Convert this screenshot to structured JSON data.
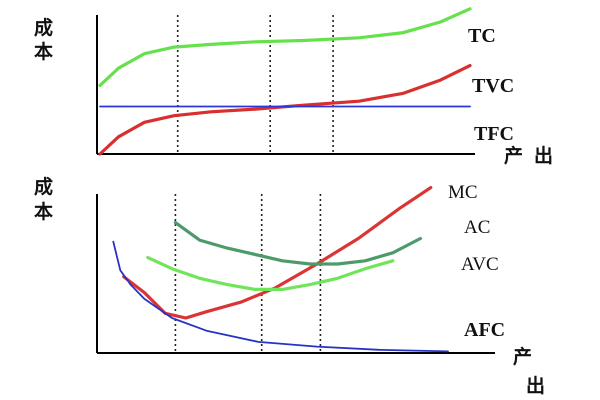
{
  "colors": {
    "background": "#ffffff",
    "tc_green": "#65e24b",
    "tvc_red": "#d92f2f",
    "tfc_blue": "#2b35d8",
    "ac_darkgreen": "#4d9a6a",
    "avc_green": "#70e55b",
    "mc_red": "#db3434",
    "afc_blue": "#2932c7",
    "axis_black": "#000000"
  },
  "chart_data": [
    {
      "type": "line",
      "axis_labels": {
        "y_label_top": "成",
        "y_label_bottom": "本",
        "x_label_left": "产",
        "x_label_right": "出"
      },
      "guide_lines": [
        0.21,
        0.46,
        0.63
      ],
      "series": [
        {
          "name": "TC",
          "x": [
            0.0,
            0.05,
            0.12,
            0.2,
            0.3,
            0.42,
            0.55,
            0.7,
            0.82,
            0.92,
            1.0
          ],
          "y": [
            0.52,
            0.65,
            0.76,
            0.81,
            0.83,
            0.85,
            0.86,
            0.88,
            0.92,
            1.0,
            1.1
          ]
        },
        {
          "name": "TVC",
          "x": [
            0.0,
            0.05,
            0.12,
            0.2,
            0.3,
            0.42,
            0.55,
            0.7,
            0.82,
            0.92,
            1.0
          ],
          "y": [
            0.0,
            0.13,
            0.24,
            0.29,
            0.32,
            0.34,
            0.37,
            0.4,
            0.46,
            0.56,
            0.67
          ]
        },
        {
          "name": "TFC",
          "x": [
            0.0,
            1.0
          ],
          "y": [
            0.36,
            0.36
          ]
        }
      ]
    },
    {
      "type": "line",
      "axis_labels": {
        "y_label_top": "成",
        "y_label_bottom": "本",
        "x_label_top": "产",
        "x_label_bottom": "出"
      },
      "guide_lines": [
        0.21,
        0.46,
        0.63
      ],
      "series": [
        {
          "name": "MC",
          "x": [
            0.06,
            0.12,
            0.18,
            0.24,
            0.3,
            0.4,
            0.5,
            0.62,
            0.74,
            0.86,
            0.95
          ],
          "y": [
            0.48,
            0.38,
            0.25,
            0.22,
            0.26,
            0.32,
            0.41,
            0.56,
            0.72,
            0.91,
            1.04
          ]
        },
        {
          "name": "AC",
          "x": [
            0.21,
            0.28,
            0.36,
            0.44,
            0.52,
            0.6,
            0.68,
            0.76,
            0.84,
            0.92
          ],
          "y": [
            0.82,
            0.71,
            0.66,
            0.62,
            0.58,
            0.56,
            0.56,
            0.58,
            0.63,
            0.72
          ]
        },
        {
          "name": "AVC",
          "x": [
            0.13,
            0.2,
            0.28,
            0.36,
            0.44,
            0.52,
            0.6,
            0.68,
            0.76,
            0.84
          ],
          "y": [
            0.6,
            0.53,
            0.47,
            0.43,
            0.4,
            0.4,
            0.43,
            0.47,
            0.53,
            0.58
          ]
        },
        {
          "name": "AFC",
          "x": [
            0.03,
            0.05,
            0.08,
            0.12,
            0.2,
            0.3,
            0.45,
            0.62,
            0.8,
            1.0
          ],
          "y": [
            0.7,
            0.52,
            0.43,
            0.34,
            0.22,
            0.14,
            0.07,
            0.04,
            0.02,
            0.01
          ]
        }
      ]
    }
  ]
}
